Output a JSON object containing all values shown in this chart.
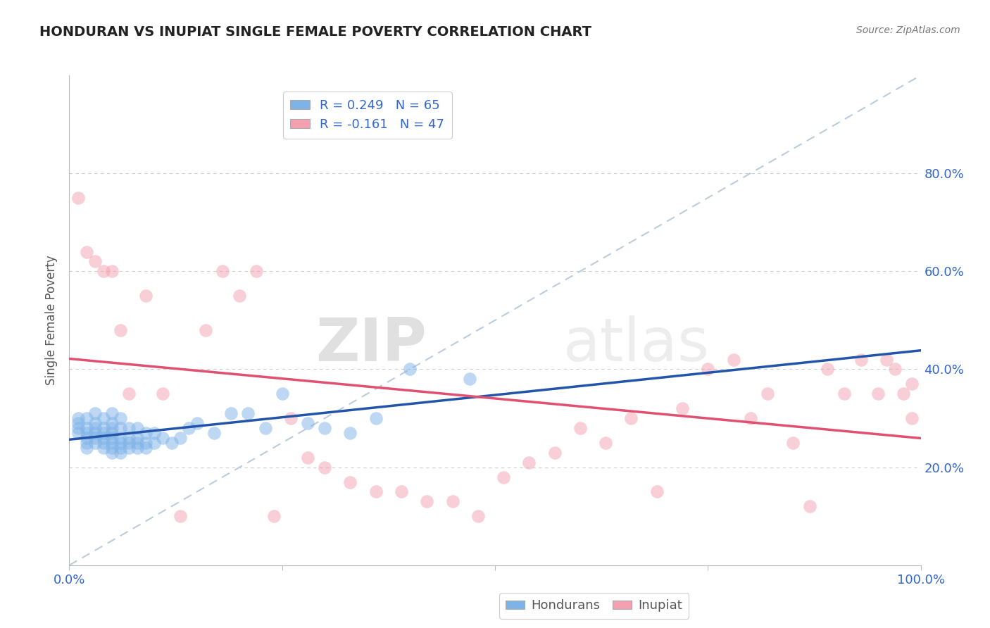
{
  "title": "HONDURAN VS INUPIAT SINGLE FEMALE POVERTY CORRELATION CHART",
  "source": "Source: ZipAtlas.com",
  "ylabel": "Single Female Poverty",
  "xlim": [
    0.0,
    1.0
  ],
  "ylim": [
    0.0,
    1.0
  ],
  "honduran_R": 0.249,
  "honduran_N": 65,
  "inupiat_R": -0.161,
  "inupiat_N": 47,
  "honduran_color": "#7EB3E8",
  "inupiat_color": "#F4A0B0",
  "honduran_trend_color": "#2255AA",
  "inupiat_trend_color": "#E05070",
  "ref_line_color": "#BBCCDD",
  "watermark_ZIP": "ZIP",
  "watermark_atlas": "atlas",
  "honduran_x": [
    0.01,
    0.01,
    0.01,
    0.01,
    0.02,
    0.02,
    0.02,
    0.02,
    0.02,
    0.02,
    0.03,
    0.03,
    0.03,
    0.03,
    0.03,
    0.03,
    0.04,
    0.04,
    0.04,
    0.04,
    0.04,
    0.04,
    0.05,
    0.05,
    0.05,
    0.05,
    0.05,
    0.05,
    0.05,
    0.05,
    0.06,
    0.06,
    0.06,
    0.06,
    0.06,
    0.06,
    0.07,
    0.07,
    0.07,
    0.07,
    0.08,
    0.08,
    0.08,
    0.08,
    0.09,
    0.09,
    0.09,
    0.1,
    0.1,
    0.11,
    0.12,
    0.13,
    0.14,
    0.15,
    0.17,
    0.19,
    0.21,
    0.23,
    0.25,
    0.28,
    0.3,
    0.33,
    0.36,
    0.4,
    0.47
  ],
  "honduran_y": [
    0.27,
    0.28,
    0.29,
    0.3,
    0.24,
    0.25,
    0.26,
    0.27,
    0.28,
    0.3,
    0.25,
    0.26,
    0.27,
    0.28,
    0.29,
    0.31,
    0.24,
    0.25,
    0.26,
    0.27,
    0.28,
    0.3,
    0.23,
    0.24,
    0.25,
    0.26,
    0.27,
    0.28,
    0.29,
    0.31,
    0.23,
    0.24,
    0.25,
    0.26,
    0.28,
    0.3,
    0.24,
    0.25,
    0.26,
    0.28,
    0.24,
    0.25,
    0.26,
    0.28,
    0.24,
    0.25,
    0.27,
    0.25,
    0.27,
    0.26,
    0.25,
    0.26,
    0.28,
    0.29,
    0.27,
    0.31,
    0.31,
    0.28,
    0.35,
    0.29,
    0.28,
    0.27,
    0.3,
    0.4,
    0.38
  ],
  "inupiat_x": [
    0.01,
    0.02,
    0.03,
    0.04,
    0.05,
    0.06,
    0.07,
    0.09,
    0.11,
    0.13,
    0.16,
    0.18,
    0.2,
    0.22,
    0.24,
    0.26,
    0.28,
    0.3,
    0.33,
    0.36,
    0.39,
    0.42,
    0.45,
    0.48,
    0.51,
    0.54,
    0.57,
    0.6,
    0.63,
    0.66,
    0.69,
    0.72,
    0.75,
    0.78,
    0.8,
    0.82,
    0.85,
    0.87,
    0.89,
    0.91,
    0.93,
    0.95,
    0.96,
    0.97,
    0.98,
    0.99,
    0.99
  ],
  "inupiat_y": [
    0.75,
    0.64,
    0.62,
    0.6,
    0.6,
    0.48,
    0.35,
    0.55,
    0.35,
    0.1,
    0.48,
    0.6,
    0.55,
    0.6,
    0.1,
    0.3,
    0.22,
    0.2,
    0.17,
    0.15,
    0.15,
    0.13,
    0.13,
    0.1,
    0.18,
    0.21,
    0.23,
    0.28,
    0.25,
    0.3,
    0.15,
    0.32,
    0.4,
    0.42,
    0.3,
    0.35,
    0.25,
    0.12,
    0.4,
    0.35,
    0.42,
    0.35,
    0.42,
    0.4,
    0.35,
    0.37,
    0.3
  ]
}
